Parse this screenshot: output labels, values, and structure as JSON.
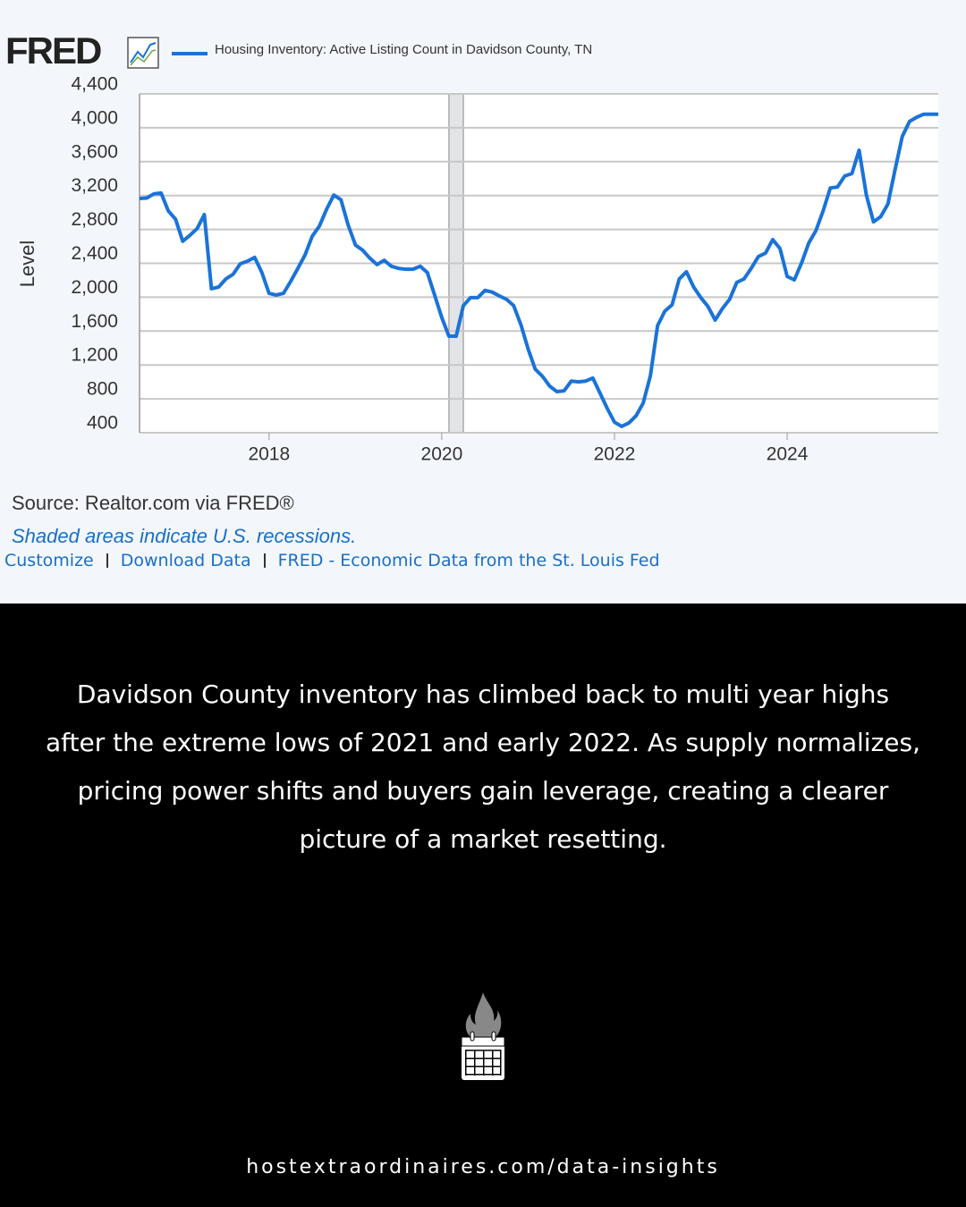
{
  "header": {
    "logo": "FRED"
  },
  "chart_data": {
    "type": "line",
    "ylabel": "Level",
    "series": [
      {
        "name": "Housing Inventory: Active Listing Count in Davidson County, TN",
        "color": "#1a73d9",
        "values": [
          3165,
          3170,
          3220,
          3230,
          3020,
          2920,
          2660,
          2730,
          2810,
          2975,
          2100,
          2120,
          2215,
          2270,
          2395,
          2425,
          2470,
          2290,
          2045,
          2025,
          2045,
          2185,
          2340,
          2500,
          2720,
          2840,
          3040,
          3205,
          3150,
          2850,
          2615,
          2555,
          2460,
          2385,
          2435,
          2365,
          2340,
          2330,
          2330,
          2365,
          2290,
          2025,
          1760,
          1540,
          1540,
          1900,
          1995,
          1995,
          2080,
          2060,
          2015,
          1975,
          1900,
          1675,
          1390,
          1150,
          1065,
          950,
          885,
          895,
          1010,
          1000,
          1010,
          1045,
          865,
          685,
          525,
          475,
          515,
          600,
          750,
          1075,
          1665,
          1835,
          1910,
          2215,
          2300,
          2120,
          1995,
          1890,
          1730,
          1865,
          1975,
          2175,
          2215,
          2340,
          2480,
          2520,
          2680,
          2575,
          2245,
          2205,
          2405,
          2640,
          2785,
          3020,
          3290,
          3300,
          3430,
          3460,
          3735,
          3205,
          2890,
          2950,
          3100,
          3505,
          3895,
          4075,
          4125,
          4160,
          4160,
          4160
        ]
      }
    ],
    "x": [
      2016.5,
      2016.583,
      2016.667,
      2016.75,
      2016.833,
      2016.917,
      2017,
      2017.083,
      2017.167,
      2017.25,
      2017.333,
      2017.417,
      2017.5,
      2017.583,
      2017.667,
      2017.75,
      2017.833,
      2017.917,
      2018,
      2018.083,
      2018.167,
      2018.25,
      2018.333,
      2018.417,
      2018.5,
      2018.583,
      2018.667,
      2018.75,
      2018.833,
      2018.917,
      2019,
      2019.083,
      2019.167,
      2019.25,
      2019.333,
      2019.417,
      2019.5,
      2019.583,
      2019.667,
      2019.75,
      2019.833,
      2019.917,
      2020,
      2020.083,
      2020.167,
      2020.25,
      2020.333,
      2020.417,
      2020.5,
      2020.583,
      2020.667,
      2020.75,
      2020.833,
      2020.917,
      2021,
      2021.083,
      2021.167,
      2021.25,
      2021.333,
      2021.417,
      2021.5,
      2021.583,
      2021.667,
      2021.75,
      2021.833,
      2021.917,
      2022,
      2022.083,
      2022.167,
      2022.25,
      2022.333,
      2022.417,
      2022.5,
      2022.583,
      2022.667,
      2022.75,
      2022.833,
      2022.917,
      2023,
      2023.083,
      2023.167,
      2023.25,
      2023.333,
      2023.417,
      2023.5,
      2023.583,
      2023.667,
      2023.75,
      2023.833,
      2023.917,
      2024,
      2024.083,
      2024.167,
      2024.25,
      2024.333,
      2024.417,
      2024.5,
      2024.583,
      2024.667,
      2024.75,
      2024.833,
      2024.917,
      2025,
      2025.083,
      2025.167,
      2025.25,
      2025.333,
      2025.417,
      2025.5,
      2025.583,
      2025.667,
      2025.75
    ],
    "xlim": [
      2016.5,
      2025.75
    ],
    "xticks": [
      2018,
      2020,
      2022,
      2024
    ],
    "ylim": [
      400,
      4400
    ],
    "yticks": [
      400,
      800,
      {
        "value": 1200,
        "label": "1,200"
      },
      {
        "value": 1600,
        "label": "1,600"
      },
      {
        "value": 2000,
        "label": "2,000"
      },
      {
        "value": 2400,
        "label": "2,400"
      },
      {
        "value": 2800,
        "label": "2,800"
      },
      {
        "value": 3200,
        "label": "3,200"
      },
      {
        "value": 3600,
        "label": "3,600"
      },
      {
        "value": 4000,
        "label": "4,000"
      },
      {
        "value": 4400,
        "label": "4,400"
      }
    ],
    "recessions": [
      [
        2020.083,
        2020.25
      ]
    ],
    "grid": true
  },
  "source": "Source: Realtor.com via FRED®",
  "note": "Shaded areas indicate U.S. recessions.",
  "links": [
    "Customize",
    "Download Data",
    "FRED - Economic Data from the St. Louis Fed"
  ],
  "caption": "Davidson County inventory has climbed back to multi year highs after the extreme lows of 2021 and early 2022. As supply normalizes, pricing power shifts and buyers gain leverage, creating a clearer picture of a market resetting.",
  "footer_url": "hostextraordinaires.com/data-insights"
}
